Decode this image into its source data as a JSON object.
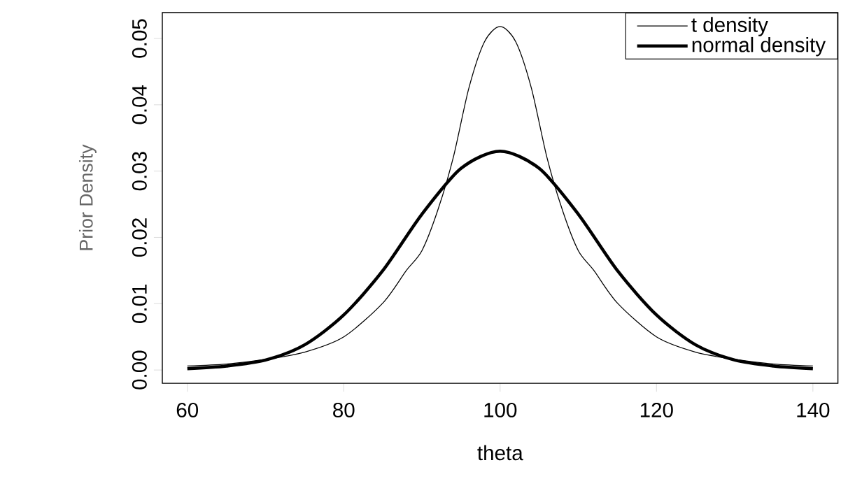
{
  "chart_data": {
    "type": "line",
    "xlabel": "theta",
    "ylabel": "Prior Density",
    "series": [
      {
        "name": "t density",
        "color": "#000000",
        "x": [
          60,
          65,
          70,
          75,
          80,
          85,
          88,
          90,
          92,
          94,
          96,
          98,
          100,
          102,
          104,
          106,
          108,
          110,
          112,
          115,
          120,
          125,
          130,
          135,
          140
        ],
        "values": [
          0.0006,
          0.0009,
          0.0016,
          0.0027,
          0.005,
          0.0101,
          0.015,
          0.018,
          0.024,
          0.032,
          0.0425,
          0.0495,
          0.0518,
          0.0495,
          0.0425,
          0.032,
          0.024,
          0.018,
          0.015,
          0.0101,
          0.005,
          0.0027,
          0.0016,
          0.0009,
          0.0006
        ]
      },
      {
        "name": "normal density",
        "color": "#000000",
        "x": [
          60,
          65,
          70,
          75,
          80,
          85,
          90,
          95,
          100,
          105,
          110,
          115,
          120,
          125,
          130,
          135,
          140
        ],
        "values": [
          0.0002,
          0.0006,
          0.0015,
          0.0038,
          0.0083,
          0.015,
          0.0235,
          0.0304,
          0.033,
          0.0304,
          0.0235,
          0.015,
          0.0083,
          0.0038,
          0.0015,
          0.0006,
          0.0002
        ]
      }
    ],
    "xlim": [
      56.8,
      143.2
    ],
    "ylim": [
      -0.002,
      0.0539
    ],
    "xticks": [
      60,
      80,
      100,
      120,
      140
    ],
    "yticks": [
      {
        "value": 0,
        "label": "0.00"
      },
      0.01,
      0.02,
      0.03,
      0.04,
      0.05
    ],
    "legend": "top right",
    "grid": false,
    "marker": "none",
    "line_style": "solid"
  }
}
